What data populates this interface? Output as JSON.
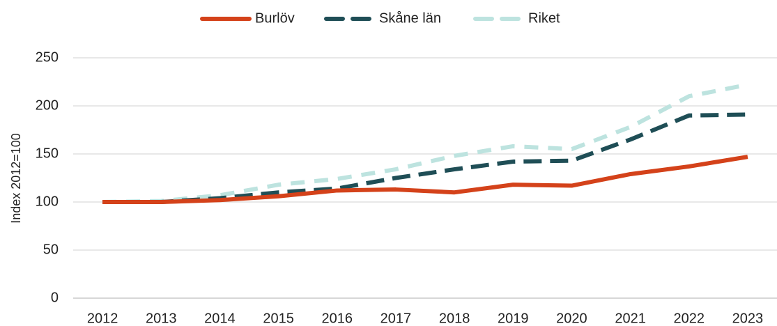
{
  "chart_data": {
    "type": "line",
    "y_label": "Index 2012=100",
    "categories": [
      "2012",
      "2013",
      "2014",
      "2015",
      "2016",
      "2017",
      "2018",
      "2019",
      "2020",
      "2021",
      "2022",
      "2023"
    ],
    "series": [
      {
        "name": "Burlöv",
        "color": "#d4421a",
        "dash": "solid",
        "values": [
          100,
          100,
          102,
          106,
          112,
          113,
          110,
          118,
          117,
          129,
          137,
          147
        ]
      },
      {
        "name": "Skåne län",
        "color": "#1f4e56",
        "dash": "dashed",
        "values": [
          100,
          100,
          104,
          110,
          114,
          125,
          134,
          142,
          143,
          165,
          190,
          191
        ]
      },
      {
        "name": "Riket",
        "color": "#bde3df",
        "dash": "dashed",
        "values": [
          100,
          101,
          107,
          118,
          124,
          134,
          148,
          158,
          155,
          178,
          210,
          222
        ]
      }
    ],
    "ylim": [
      0,
      250
    ],
    "yticks": [
      0,
      50,
      100,
      150,
      200,
      250
    ],
    "grid": true,
    "legend": "top"
  }
}
